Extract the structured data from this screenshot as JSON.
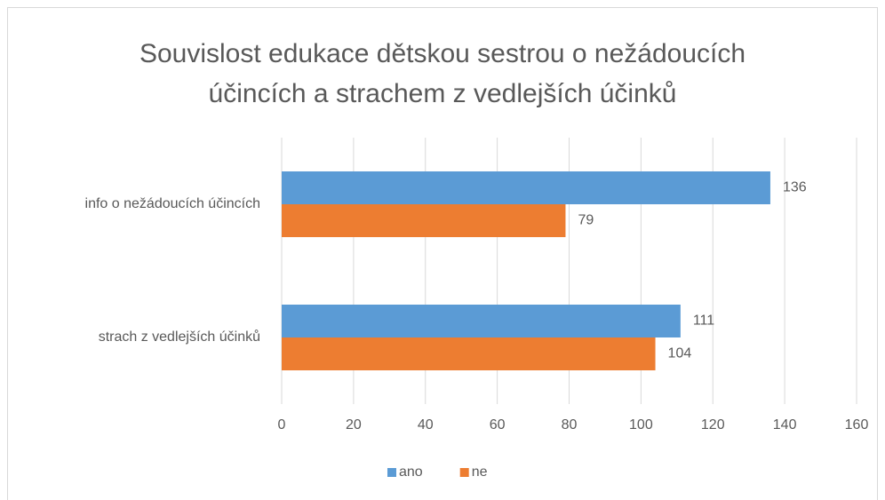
{
  "chart_data": {
    "type": "hbar",
    "title": [
      "Souvislost edukace dětskou sestrou o nežádoucích",
      "účincích a strachem z vedlejších účinků"
    ],
    "categories": [
      "info o nežádoucích účincích",
      "strach z vedlejších účinků"
    ],
    "series": [
      {
        "name": "ano",
        "color": "#5b9bd5",
        "values": [
          136,
          111
        ]
      },
      {
        "name": "ne",
        "color": "#ed7d31",
        "values": [
          79,
          104
        ]
      }
    ],
    "xlim": [
      0,
      160
    ],
    "xticks": [
      0,
      20,
      40,
      60,
      80,
      100,
      120,
      140,
      160
    ],
    "grid": true,
    "legend": "bottom"
  }
}
